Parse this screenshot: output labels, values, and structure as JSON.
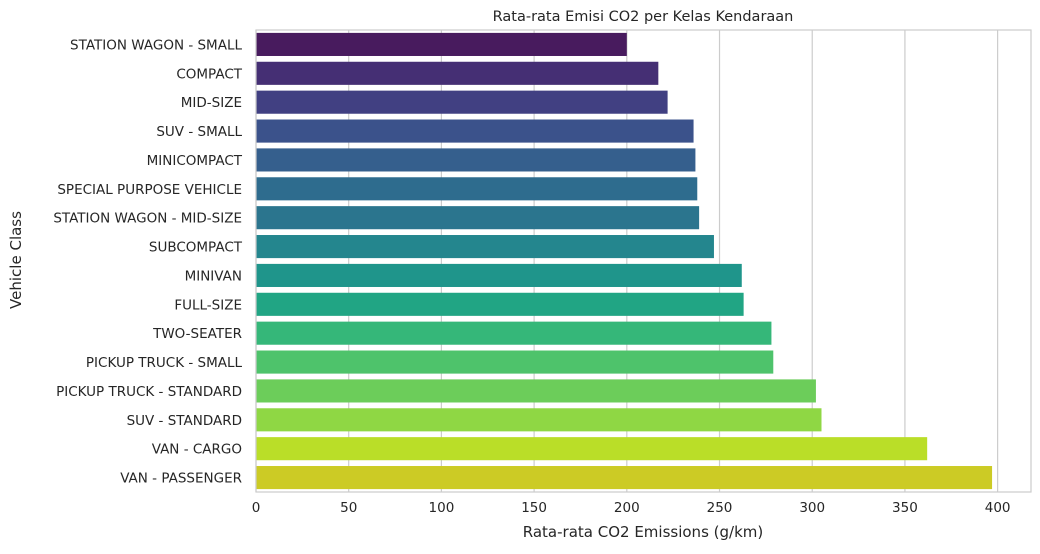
{
  "chart_data": {
    "type": "bar",
    "orientation": "horizontal",
    "title": "Rata-rata Emisi CO2 per Kelas Kendaraan",
    "xlabel": "Rata-rata CO2 Emissions (g/km)",
    "ylabel": "Vehicle Class",
    "xlim": [
      0,
      418
    ],
    "x_ticks": [
      0,
      50,
      100,
      150,
      200,
      250,
      300,
      350,
      400
    ],
    "grid": "vertical",
    "categories": [
      "STATION WAGON - SMALL",
      "COMPACT",
      "MID-SIZE",
      "SUV - SMALL",
      "MINICOMPACT",
      "SPECIAL PURPOSE VEHICLE",
      "STATION WAGON - MID-SIZE",
      "SUBCOMPACT",
      "MINIVAN",
      "FULL-SIZE",
      "TWO-SEATER",
      "PICKUP TRUCK - SMALL",
      "PICKUP TRUCK - STANDARD",
      "SUV - STANDARD",
      "VAN - CARGO",
      "VAN - PASSENGER"
    ],
    "values": [
      200,
      217,
      222,
      236,
      237,
      238,
      239,
      247,
      262,
      263,
      278,
      279,
      302,
      305,
      362,
      397
    ],
    "colors": [
      "#481b5e",
      "#452f74",
      "#414082",
      "#3b528b",
      "#355f8d",
      "#2e6c8e",
      "#2b758e",
      "#24868e",
      "#1f958b",
      "#21a584",
      "#35b779",
      "#4ec36b",
      "#6ccd5a",
      "#8fd744",
      "#bade28",
      "#cccb25"
    ]
  }
}
